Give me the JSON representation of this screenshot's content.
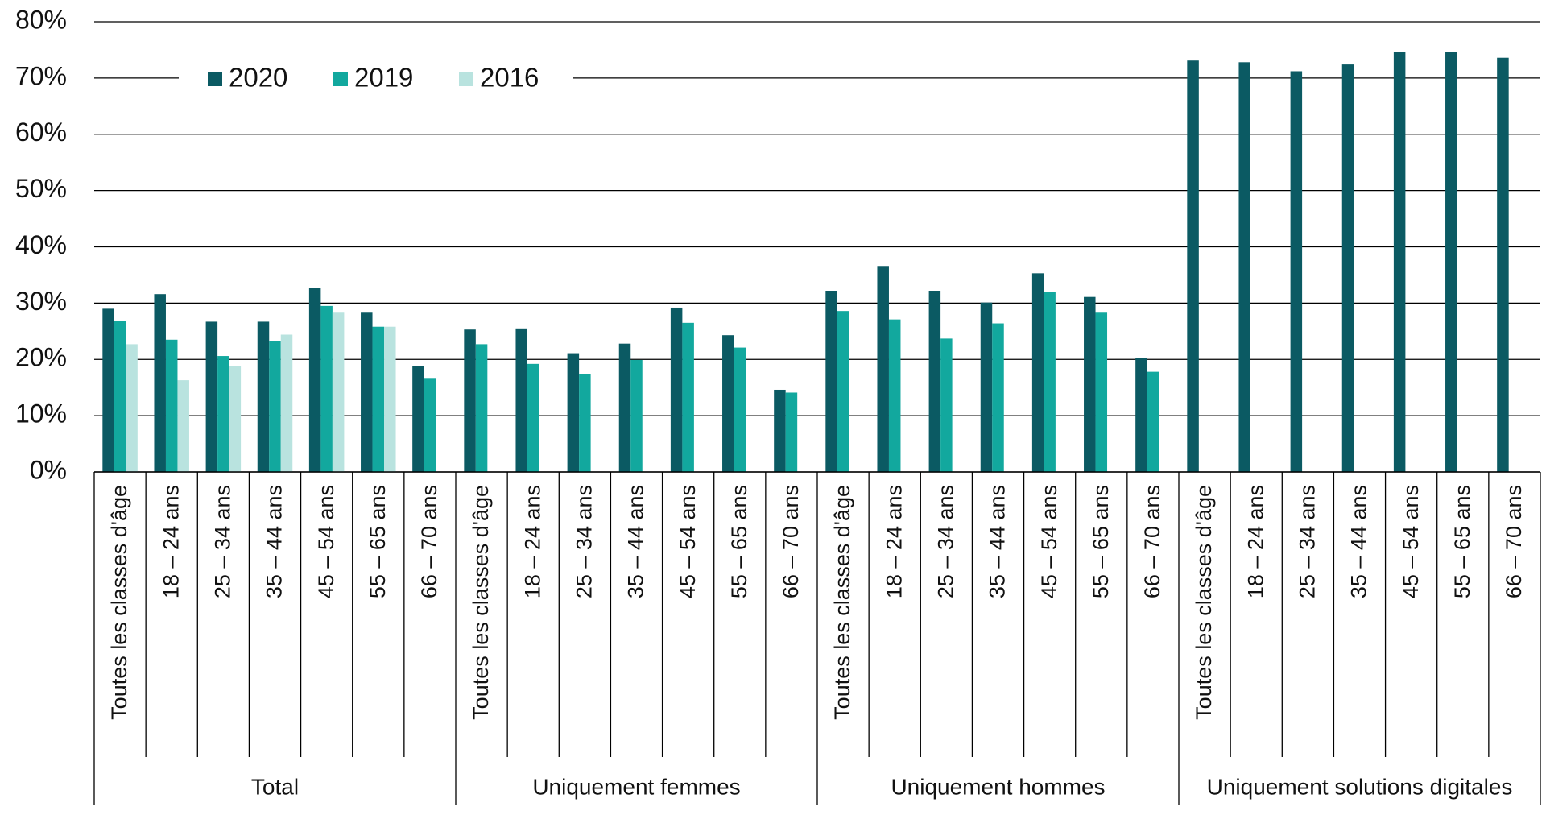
{
  "chart_data": {
    "type": "bar",
    "categories": [
      "Toutes les classes d'âge",
      "18 – 24 ans",
      "25 – 34 ans",
      "35 – 44 ans",
      "45 – 54 ans",
      "55 – 65 ans",
      "66 – 70 ans",
      "Toutes les classes d'âge",
      "18 – 24 ans",
      "25 – 34 ans",
      "35 – 44 ans",
      "45 – 54 ans",
      "55 – 65 ans",
      "66 – 70 ans",
      "Toutes les classes d'âge",
      "18 – 24 ans",
      "25 – 34 ans",
      "35 – 44 ans",
      "45 – 54 ans",
      "55 – 65 ans",
      "66 – 70 ans",
      "Toutes les classes d'âge",
      "18 – 24 ans",
      "25 – 34 ans",
      "35 – 44 ans",
      "45 – 54 ans",
      "55 – 65 ans",
      "66 – 70 ans"
    ],
    "groups": [
      "Total",
      "Uniquement femmes",
      "Uniquement hommes",
      "Uniquement solutions digitales"
    ],
    "series": [
      {
        "name": "2020",
        "color": "#0b5a63",
        "values": [
          29.0,
          31.6,
          26.7,
          26.7,
          32.7,
          28.3,
          18.8,
          25.3,
          25.5,
          21.1,
          22.8,
          29.2,
          24.3,
          14.6,
          32.2,
          36.6,
          32.2,
          30.1,
          35.3,
          31.1,
          20.2,
          73.1,
          72.8,
          71.2,
          72.4,
          74.7,
          74.7,
          73.6
        ]
      },
      {
        "name": "2019",
        "color": "#12a89e",
        "values": [
          26.9,
          23.5,
          20.6,
          23.2,
          29.5,
          25.8,
          16.7,
          22.7,
          19.2,
          17.4,
          19.9,
          26.5,
          22.1,
          14.1,
          28.6,
          27.1,
          23.7,
          26.4,
          32.0,
          28.3,
          17.8,
          null,
          null,
          null,
          null,
          null,
          null,
          null
        ]
      },
      {
        "name": "2016",
        "color": "#b9e3df",
        "values": [
          22.7,
          16.3,
          18.8,
          24.4,
          28.3,
          25.8,
          null,
          null,
          null,
          null,
          null,
          null,
          null,
          null,
          null,
          null,
          null,
          null,
          null,
          null,
          null,
          null,
          null,
          null,
          null,
          null,
          null,
          null
        ]
      }
    ],
    "ylim": [
      0,
      80
    ],
    "yticks": [
      {
        "value": 0,
        "label": "0%"
      },
      {
        "value": 10,
        "label": "10%"
      },
      {
        "value": 20,
        "label": "20%"
      },
      {
        "value": 30,
        "label": "30%"
      },
      {
        "value": 40,
        "label": "40%"
      },
      {
        "value": 50,
        "label": "50%"
      },
      {
        "value": 60,
        "label": "60%"
      },
      {
        "value": 70,
        "label": "70%"
      },
      {
        "value": 80,
        "label": "80%"
      }
    ],
    "grid": true,
    "legend": "top-left"
  }
}
